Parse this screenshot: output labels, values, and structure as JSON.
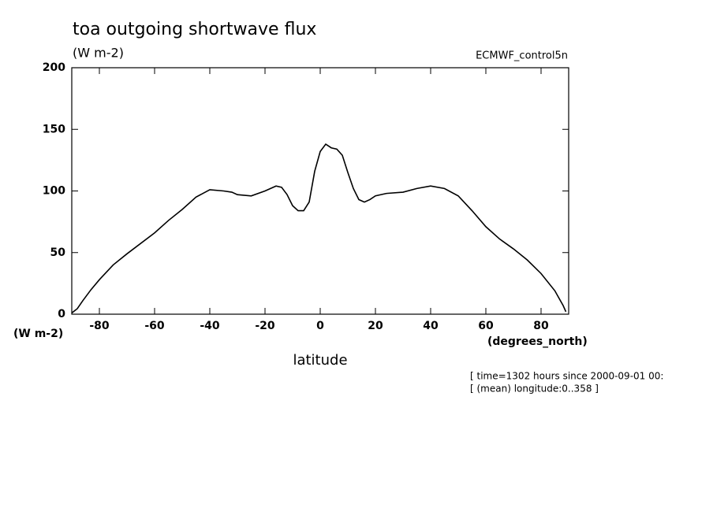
{
  "chart_data": {
    "type": "line",
    "title": "toa outgoing shortwave flux",
    "units_label": "(W m-2)",
    "dataset_label": "ECMWF_control5n",
    "y_axis_units": "(W m-2)",
    "x_axis_units": "(degrees_north)",
    "x_label": "latitude",
    "notes": [
      "[ time=1302 hours since 2000-09-01 00:",
      "[ (mean) longitude:0..358 ]"
    ],
    "x": [
      -90,
      -88,
      -86,
      -83,
      -80,
      -75,
      -70,
      -60,
      -55,
      -50,
      -45,
      -40,
      -35,
      -32,
      -30,
      -25,
      -20,
      -16,
      -14,
      -12,
      -10,
      -8,
      -6,
      -4,
      -2,
      0,
      2,
      4,
      6,
      8,
      10,
      12,
      14,
      16,
      18,
      20,
      24,
      30,
      35,
      40,
      45,
      50,
      55,
      60,
      65,
      70,
      75,
      80,
      85,
      88,
      89
    ],
    "series": [
      {
        "color": "#000000",
        "values": [
          1,
          4.5,
          11,
          20,
          28,
          40,
          49,
          66,
          76,
          85,
          95,
          101,
          100,
          99,
          97,
          96,
          100,
          104,
          103,
          97,
          88,
          84,
          84,
          91,
          116,
          132,
          138,
          135,
          134,
          129,
          115,
          102,
          93,
          91,
          93,
          96,
          98,
          99,
          102,
          104,
          102,
          96,
          84,
          71,
          61,
          53,
          44,
          33,
          19,
          7,
          2
        ]
      }
    ],
    "xlim": [
      -90,
      90
    ],
    "ylim": [
      0,
      200
    ],
    "xticks": [
      -80,
      -60,
      -40,
      -20,
      0,
      20,
      40,
      60,
      80
    ],
    "yticks": [
      0,
      50,
      100,
      150,
      200
    ]
  }
}
